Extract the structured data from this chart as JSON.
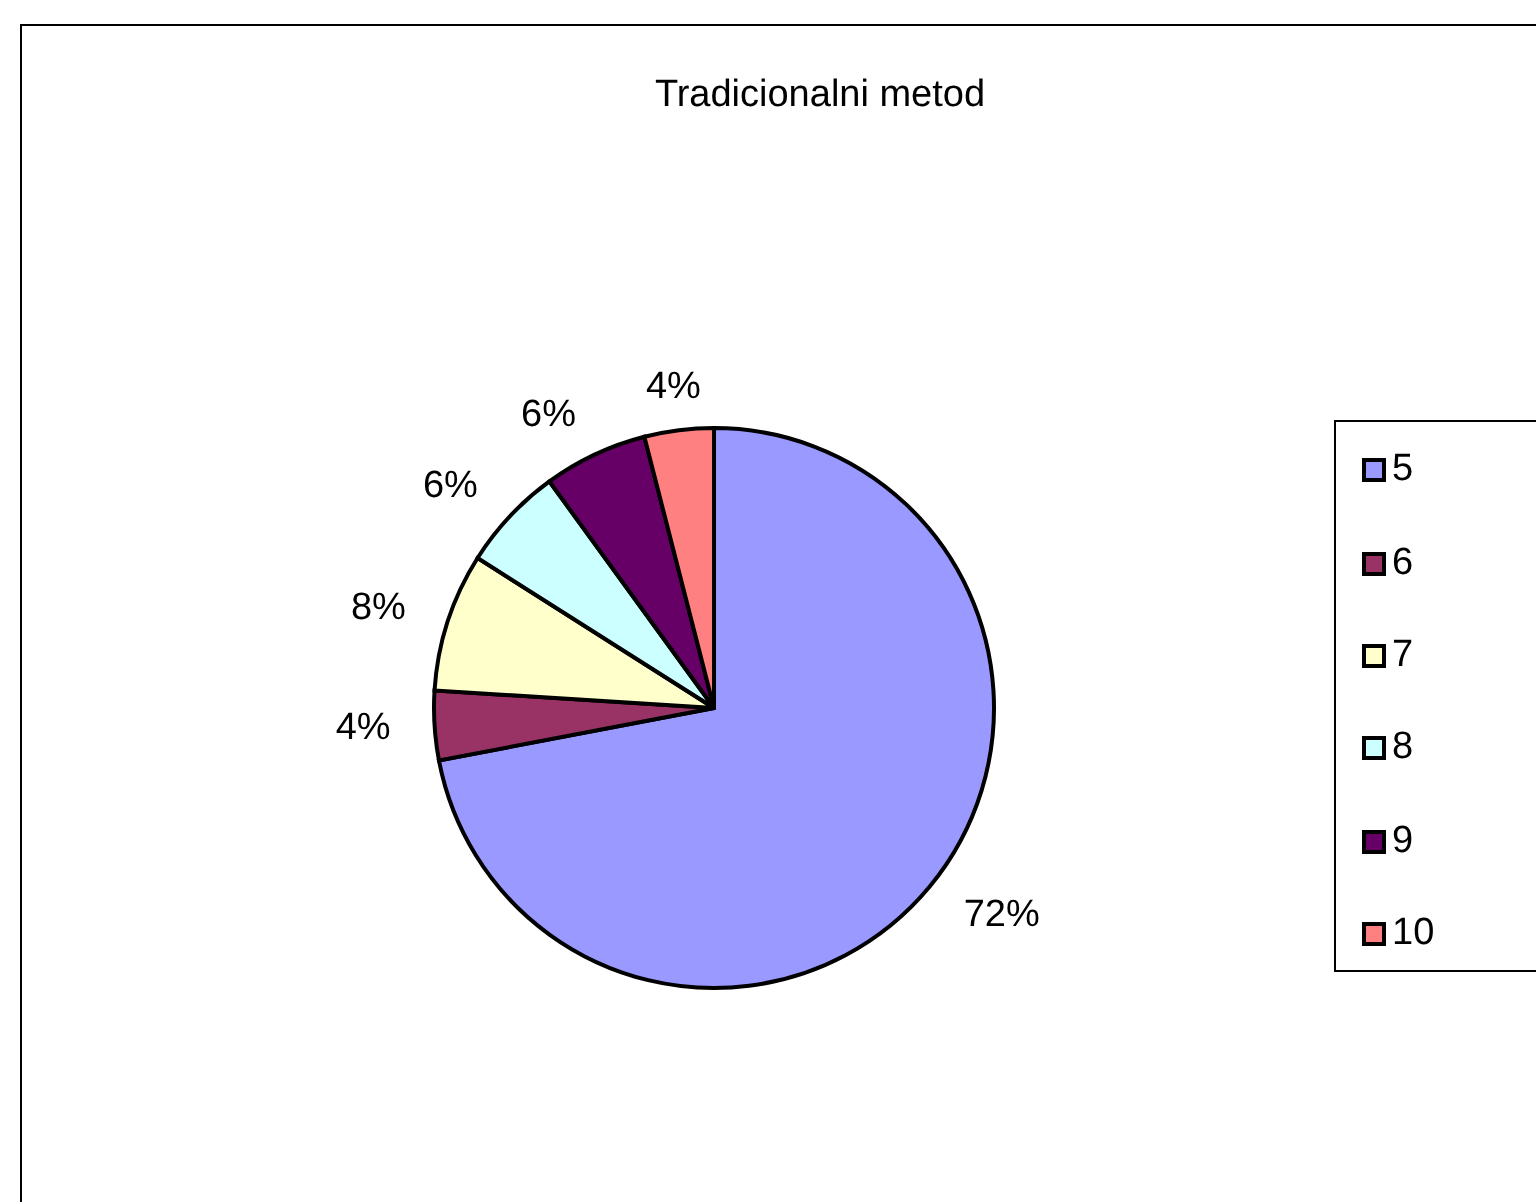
{
  "chart_data": {
    "type": "pie",
    "title": "Tradicionalni metod",
    "categories": [
      "5",
      "6",
      "7",
      "8",
      "9",
      "10"
    ],
    "values": [
      72,
      4,
      8,
      6,
      6,
      4
    ],
    "colors": [
      "#9999ff",
      "#993366",
      "#ffffcc",
      "#ccffff",
      "#660066",
      "#ff8080"
    ],
    "value_labels": [
      "72%",
      "4%",
      "8%",
      "6%",
      "6%",
      "4%"
    ],
    "legend": "right"
  }
}
